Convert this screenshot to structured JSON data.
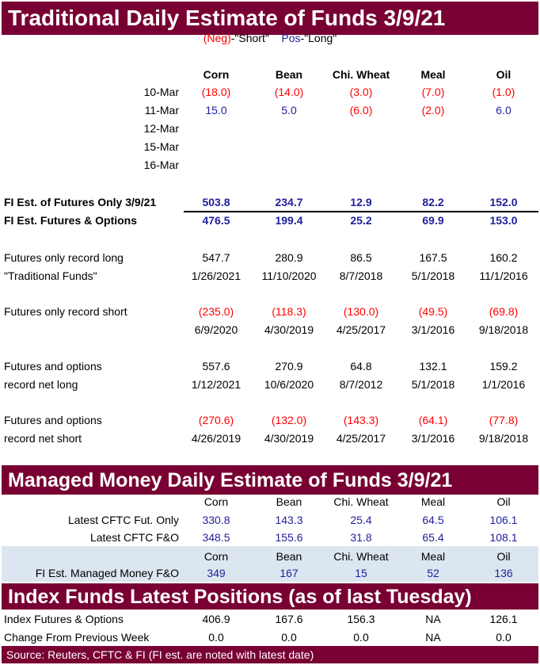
{
  "titles": {
    "traditional": "Traditional Daily Estimate of Funds 3/9/21",
    "managed": "Managed Money Daily Estimate of Funds 3/9/21",
    "index": "Index Funds Latest Positions (as of last Tuesday)",
    "source": "Source: Reuters, CFTC & FI (FI est. are noted with latest date)"
  },
  "legend": {
    "neg": "(Neg)",
    "short": "-\"Short\"",
    "pos": "Pos",
    "long": "-\"Long\""
  },
  "colors": {
    "banner": "#780032",
    "negative": "#ff0000",
    "positive": "#1f1f9c",
    "shade": "#dce6f0"
  },
  "traditional": {
    "columns": [
      "Corn",
      "Bean",
      "Chi. Wheat",
      "Meal",
      "Oil"
    ],
    "daily": [
      {
        "label": "10-Mar",
        "values": [
          "(18.0)",
          "(14.0)",
          "(3.0)",
          "(7.0)",
          "(1.0)"
        ]
      },
      {
        "label": "11-Mar",
        "values": [
          "15.0",
          "5.0",
          "(6.0)",
          "(2.0)",
          "6.0"
        ]
      },
      {
        "label": "12-Mar",
        "values": [
          "",
          "",
          "",
          "",
          ""
        ]
      },
      {
        "label": "15-Mar",
        "values": [
          "",
          "",
          "",
          "",
          ""
        ]
      },
      {
        "label": "16-Mar",
        "values": [
          "",
          "",
          "",
          "",
          ""
        ]
      }
    ],
    "estimates": [
      {
        "label": "FI Est. of Futures Only 3/9/21",
        "values": [
          "503.8",
          "234.7",
          "12.9",
          "82.2",
          "152.0"
        ]
      },
      {
        "label": "FI Est. Futures & Options",
        "values": [
          "476.5",
          "199.4",
          "25.2",
          "69.9",
          "153.0"
        ]
      }
    ],
    "records": [
      {
        "label1": "Futures only record long",
        "label2": "\"Traditional Funds\"",
        "values": [
          "547.7",
          "280.9",
          "86.5",
          "167.5",
          "160.2"
        ],
        "dates": [
          "1/26/2021",
          "11/10/2020",
          "8/7/2018",
          "5/1/2018",
          "11/1/2016"
        ]
      },
      {
        "label1": "Futures only record short",
        "label2": "",
        "values": [
          "(235.0)",
          "(118.3)",
          "(130.0)",
          "(49.5)",
          "(69.8)"
        ],
        "dates": [
          "6/9/2020",
          "4/30/2019",
          "4/25/2017",
          "3/1/2016",
          "9/18/2018"
        ]
      },
      {
        "label1": "Futures and options",
        "label2": "record net long",
        "values": [
          "557.6",
          "270.9",
          "64.8",
          "132.1",
          "159.2"
        ],
        "dates": [
          "1/12/2021",
          "10/6/2020",
          "8/7/2012",
          "5/1/2018",
          "1/1/2016"
        ]
      },
      {
        "label1": "Futures and options",
        "label2": "record net short",
        "values": [
          "(270.6)",
          "(132.0)",
          "(143.3)",
          "(64.1)",
          "(77.8)"
        ],
        "dates": [
          "4/26/2019",
          "4/30/2019",
          "4/25/2017",
          "3/1/2016",
          "9/18/2018"
        ]
      }
    ]
  },
  "managed": {
    "columns": [
      "Corn",
      "Bean",
      "Chi. Wheat",
      "Meal",
      "Oil"
    ],
    "rows": [
      {
        "label": "Latest CFTC Fut. Only",
        "values": [
          "330.8",
          "143.3",
          "25.4",
          "64.5",
          "106.1"
        ]
      },
      {
        "label": "Latest CFTC F&O",
        "values": [
          "348.5",
          "155.6",
          "31.8",
          "65.4",
          "108.1"
        ]
      }
    ],
    "fi_columns": [
      "Corn",
      "Bean",
      "Chi. Wheat",
      "Meal",
      "Oil"
    ],
    "fi_row": {
      "label": "FI Est. Managed Money F&O",
      "values": [
        "349",
        "167",
        "15",
        "52",
        "136"
      ]
    }
  },
  "index": {
    "rows": [
      {
        "label": "Index Futures & Options",
        "values": [
          "406.9",
          "167.6",
          "156.3",
          "NA",
          "126.1"
        ]
      },
      {
        "label": "Change From Previous Week",
        "values": [
          "0.0",
          "0.0",
          "0.0",
          "NA",
          "0.0"
        ]
      }
    ]
  }
}
